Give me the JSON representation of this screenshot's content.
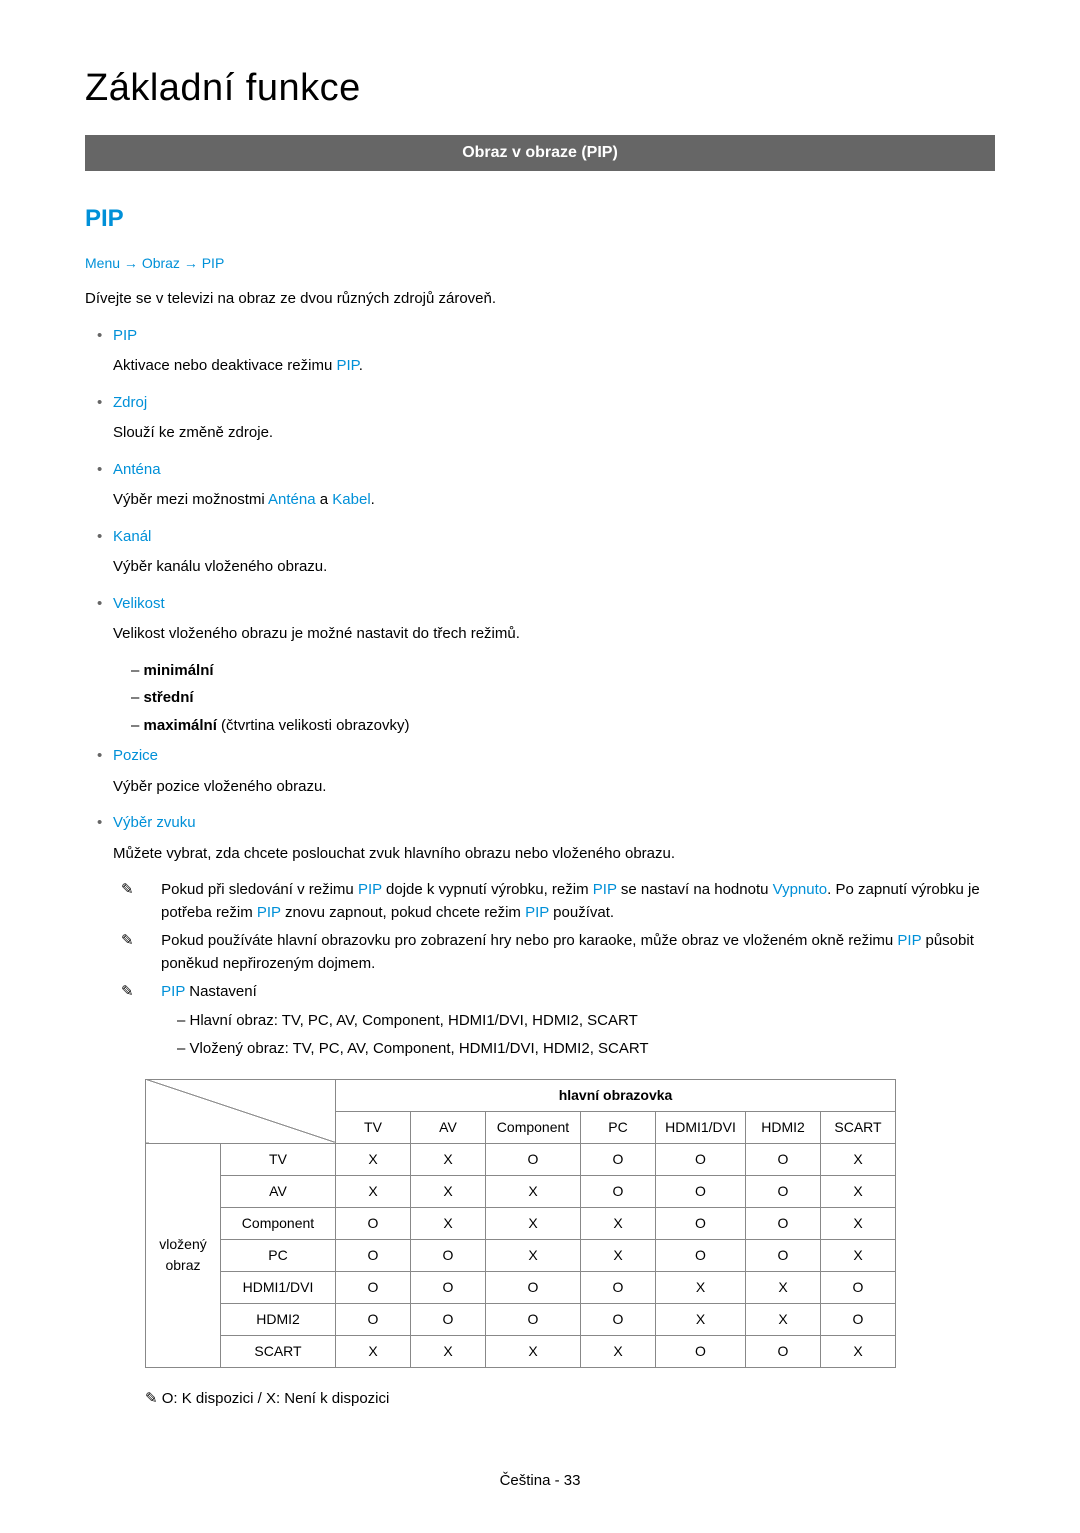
{
  "page": {
    "title": "Základní funkce",
    "section_bar": "Obraz v obraze (PIP)",
    "sub_heading": "PIP",
    "breadcrumb": [
      "Menu",
      "Obraz",
      "PIP"
    ],
    "intro": "Dívejte se v televizi na obraz ze dvou různých zdrojů zároveň.",
    "footer": "Čeština - 33"
  },
  "features": [
    {
      "name": "PIP",
      "desc_pre": "Aktivace nebo deaktivace režimu ",
      "teal_inline": "PIP",
      "desc_post": "."
    },
    {
      "name": "Zdroj",
      "desc": "Slouží ke změně zdroje."
    },
    {
      "name": "Anténa",
      "desc_pre": "Výběr mezi možnostmi ",
      "teal_inline": "Anténa",
      "mid": " a ",
      "teal_inline2": "Kabel",
      "desc_post": "."
    },
    {
      "name": "Kanál",
      "desc": "Výběr kanálu vloženého obrazu."
    },
    {
      "name": "Velikost",
      "desc": "Velikost vloženého obrazu je možné nastavit do třech režimů.",
      "sublist": [
        {
          "bold": "minimální"
        },
        {
          "bold": "střední"
        },
        {
          "bold": "maximální",
          "rest": " (čtvrtina velikosti obrazovky)"
        }
      ]
    },
    {
      "name": "Pozice",
      "desc": "Výběr pozice vloženého obrazu."
    },
    {
      "name": "Výběr zvuku",
      "desc": "Můžete vybrat, zda chcete poslouchat zvuk hlavního obrazu nebo vloženého obrazu."
    }
  ],
  "notes": {
    "n1": {
      "p1": "Pokud při sledování v režimu ",
      "t1": "PIP",
      "p2": " dojde k vypnutí výrobku, režim ",
      "t2": "PIP",
      "p3": " se nastaví na hodnotu ",
      "t3": "Vypnuto",
      "p4": ". Po zapnutí výrobku je potřeba režim ",
      "t4": "PIP",
      "p5": " znovu zapnout, pokud chcete režim ",
      "t5": "PIP",
      "p6": " používat."
    },
    "n2": {
      "p1": "Pokud používáte hlavní obrazovku pro zobrazení hry nebo pro karaoke, může obraz ve vloženém okně režimu ",
      "t1": "PIP",
      "p2": " působit poněkud nepřirozeným dojmem."
    },
    "n3": {
      "t1": "PIP",
      "p1": " Nastavení"
    },
    "dash": [
      "Hlavní obraz: TV, PC, AV, Component, HDMI1/DVI, HDMI2, SCART",
      "Vložený obraz: TV, PC, AV, Component, HDMI1/DVI, HDMI2, SCART"
    ]
  },
  "table": {
    "header_main": "hlavní obrazovka",
    "row_group_label": "vložený obraz",
    "cols": [
      "TV",
      "AV",
      "Component",
      "PC",
      "HDMI1/DVI",
      "HDMI2",
      "SCART"
    ],
    "rows": [
      {
        "label": "TV",
        "cells": [
          "X",
          "X",
          "O",
          "O",
          "O",
          "O",
          "X"
        ]
      },
      {
        "label": "AV",
        "cells": [
          "X",
          "X",
          "X",
          "O",
          "O",
          "O",
          "X"
        ]
      },
      {
        "label": "Component",
        "cells": [
          "O",
          "X",
          "X",
          "X",
          "O",
          "O",
          "X"
        ]
      },
      {
        "label": "PC",
        "cells": [
          "O",
          "O",
          "X",
          "X",
          "O",
          "O",
          "X"
        ]
      },
      {
        "label": "HDMI1/DVI",
        "cells": [
          "O",
          "O",
          "O",
          "O",
          "X",
          "X",
          "O"
        ]
      },
      {
        "label": "HDMI2",
        "cells": [
          "O",
          "O",
          "O",
          "O",
          "X",
          "X",
          "O"
        ]
      },
      {
        "label": "SCART",
        "cells": [
          "X",
          "X",
          "X",
          "X",
          "O",
          "O",
          "X"
        ]
      }
    ],
    "footnote": "O: K dispozici / X: Není k dispozici",
    "col_widths": {
      "main": 75,
      "rowlabel": 115,
      "group": 75,
      "component": 95,
      "hdmi": 90
    }
  },
  "colors": {
    "accent": "#0090d8",
    "bar_bg": "#666666",
    "border": "#888888"
  }
}
